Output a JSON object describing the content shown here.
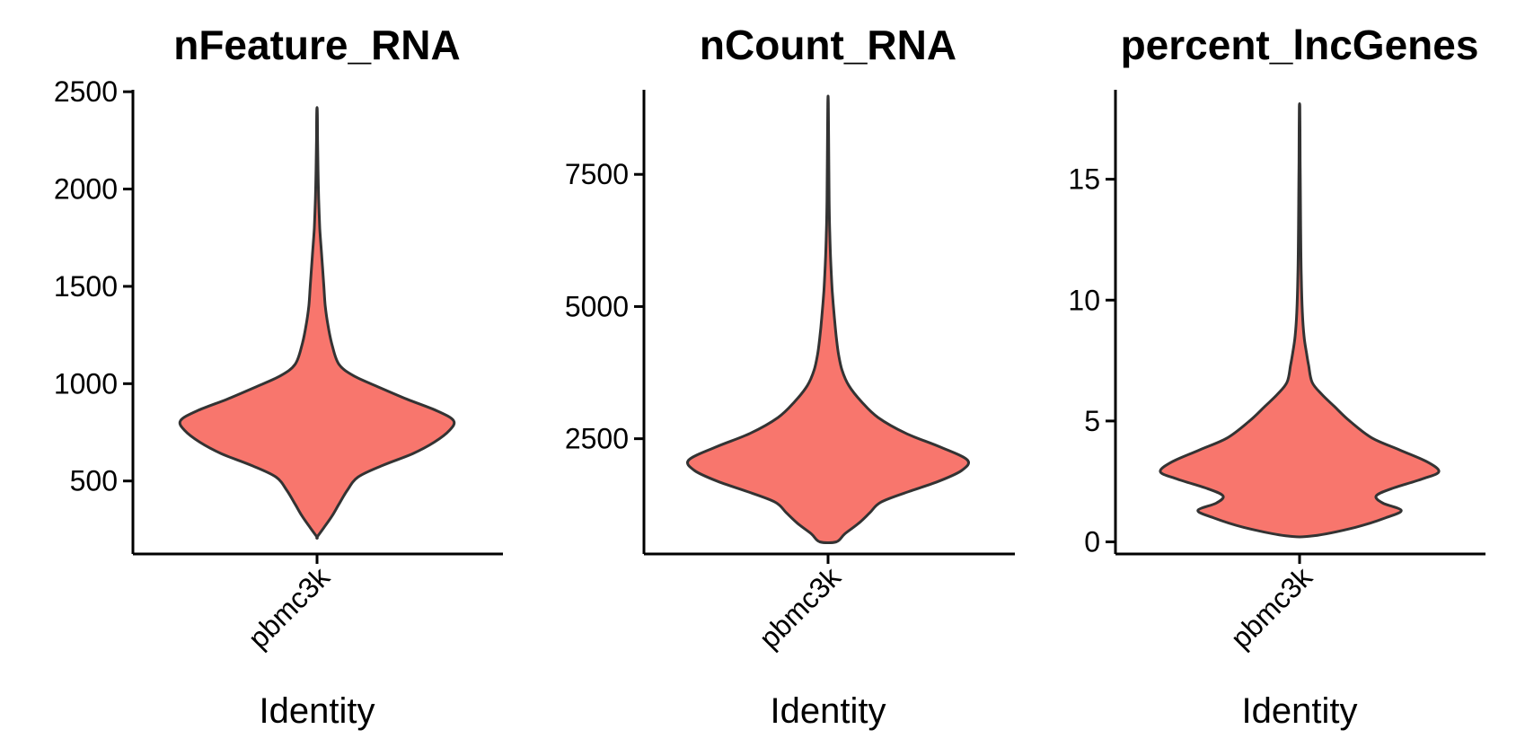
{
  "chart_data": [
    {
      "type": "violin",
      "title": "nFeature_RNA",
      "xlabel": "Identity",
      "ylabel": "",
      "categories": [
        "pbmc3k"
      ],
      "ylim": [
        125,
        2510
      ],
      "yticks": [
        500,
        1000,
        1500,
        2000,
        2500
      ],
      "fill_color": "#F8766D",
      "outline_color": "#333333",
      "grid": false,
      "legend": "none",
      "density": [
        [
          212,
          0.0
        ],
        [
          260,
          0.05
        ],
        [
          320,
          0.11
        ],
        [
          380,
          0.16
        ],
        [
          450,
          0.22
        ],
        [
          520,
          0.3
        ],
        [
          580,
          0.48
        ],
        [
          640,
          0.7
        ],
        [
          700,
          0.86
        ],
        [
          760,
          0.97
        ],
        [
          810,
          1.0
        ],
        [
          860,
          0.88
        ],
        [
          920,
          0.66
        ],
        [
          980,
          0.46
        ],
        [
          1040,
          0.27
        ],
        [
          1100,
          0.16
        ],
        [
          1200,
          0.11
        ],
        [
          1300,
          0.08
        ],
        [
          1400,
          0.06
        ],
        [
          1500,
          0.05
        ],
        [
          1650,
          0.035
        ],
        [
          1800,
          0.02
        ],
        [
          1950,
          0.012
        ],
        [
          2100,
          0.007
        ],
        [
          2250,
          0.004
        ],
        [
          2400,
          0.002
        ]
      ]
    },
    {
      "type": "violin",
      "title": "nCount_RNA",
      "xlabel": "Identity",
      "ylabel": "",
      "categories": [
        "pbmc3k"
      ],
      "ylim": [
        320,
        9100
      ],
      "yticks": [
        2500,
        5000,
        7500
      ],
      "fill_color": "#F8766D",
      "outline_color": "#333333",
      "grid": false,
      "legend": "none",
      "density": [
        [
          550,
          0.06
        ],
        [
          700,
          0.12
        ],
        [
          900,
          0.22
        ],
        [
          1100,
          0.3
        ],
        [
          1300,
          0.38
        ],
        [
          1500,
          0.58
        ],
        [
          1700,
          0.8
        ],
        [
          1900,
          0.96
        ],
        [
          2100,
          1.0
        ],
        [
          2350,
          0.8
        ],
        [
          2600,
          0.56
        ],
        [
          2900,
          0.36
        ],
        [
          3200,
          0.24
        ],
        [
          3500,
          0.15
        ],
        [
          3800,
          0.1
        ],
        [
          4100,
          0.075
        ],
        [
          4400,
          0.06
        ],
        [
          4800,
          0.045
        ],
        [
          5300,
          0.03
        ],
        [
          5800,
          0.02
        ],
        [
          6400,
          0.012
        ],
        [
          7000,
          0.008
        ],
        [
          7800,
          0.005
        ],
        [
          8850,
          0.002
        ]
      ]
    },
    {
      "type": "violin",
      "title": "percent_lncGenes",
      "xlabel": "Identity",
      "ylabel": "",
      "categories": [
        "pbmc3k"
      ],
      "ylim": [
        -0.5,
        18.7
      ],
      "yticks": [
        0,
        5,
        10,
        15
      ],
      "fill_color": "#F8766D",
      "outline_color": "#333333",
      "grid": false,
      "legend": "none",
      "density": [
        [
          0.25,
          0.1
        ],
        [
          0.6,
          0.4
        ],
        [
          1.0,
          0.62
        ],
        [
          1.3,
          0.73
        ],
        [
          1.6,
          0.6
        ],
        [
          1.9,
          0.55
        ],
        [
          2.2,
          0.66
        ],
        [
          2.6,
          0.88
        ],
        [
          2.9,
          1.0
        ],
        [
          3.3,
          0.92
        ],
        [
          3.8,
          0.72
        ],
        [
          4.3,
          0.52
        ],
        [
          5.0,
          0.36
        ],
        [
          5.6,
          0.25
        ],
        [
          6.1,
          0.16
        ],
        [
          6.6,
          0.09
        ],
        [
          7.3,
          0.065
        ],
        [
          7.8,
          0.05
        ],
        [
          8.5,
          0.032
        ],
        [
          9.5,
          0.02
        ],
        [
          11,
          0.012
        ],
        [
          13,
          0.008
        ],
        [
          15,
          0.005
        ],
        [
          17,
          0.003
        ],
        [
          18,
          0.002
        ]
      ]
    }
  ]
}
